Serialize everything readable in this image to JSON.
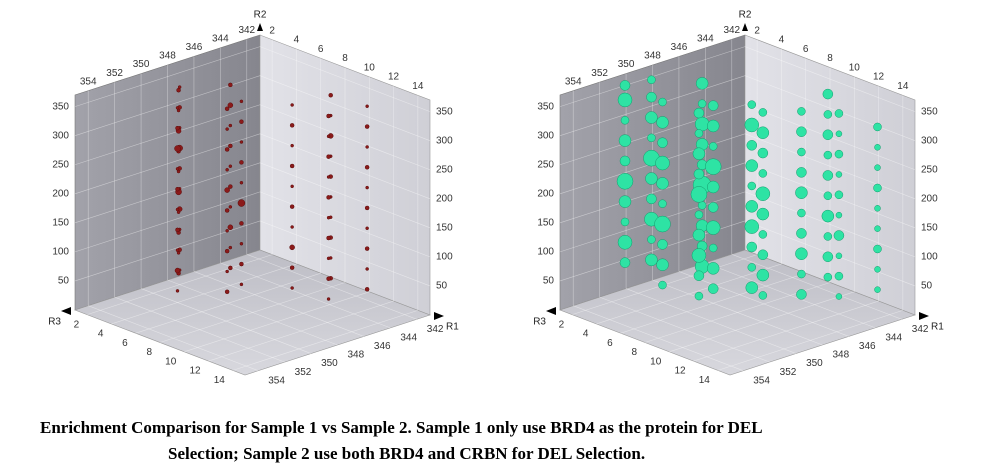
{
  "chart_data": [
    {
      "type": "scatter3d",
      "color": "#8b1a1a",
      "stroke": "#5a0d0d",
      "xlabel": "R1",
      "ylabel": "R2",
      "zlabel": "R3",
      "xlim": [
        341,
        355
      ],
      "xticks": [
        342,
        344,
        346,
        348,
        350,
        352,
        354
      ],
      "zlim": [
        1,
        15
      ],
      "zticks": [
        2,
        4,
        6,
        8,
        10,
        12,
        14
      ],
      "ylim": [
        0,
        370
      ],
      "yticks": [
        50,
        100,
        150,
        200,
        250,
        300,
        350
      ],
      "grid": true,
      "columns": [
        {
          "r1": 348,
          "r3": 2,
          "r2": [
            25,
            60,
            95,
            130,
            165,
            200,
            235,
            270,
            305,
            340
          ],
          "size": [
            1.5,
            2,
            1.5,
            2.5,
            1.5,
            2,
            3,
            1.5,
            2,
            1.5
          ]
        },
        {
          "r1": 349,
          "r3": 3,
          "r2": [
            35,
            70,
            105,
            140,
            175,
            210,
            245,
            280,
            315,
            350
          ],
          "size": [
            2,
            1.5,
            2,
            1.5,
            3,
            1.5,
            2,
            2.5,
            1.5,
            2
          ]
        },
        {
          "r1": 350,
          "r3": 4,
          "r2": [
            20,
            55,
            90,
            125,
            160,
            195,
            230,
            265,
            300,
            335
          ],
          "size": [
            1.5,
            2.5,
            1.5,
            2,
            1.5,
            2,
            1.5,
            3,
            2,
            1.5
          ]
        },
        {
          "r1": 346,
          "r3": 4,
          "r2": [
            30,
            65,
            100,
            135,
            170,
            205,
            240,
            275,
            310,
            345
          ],
          "size": [
            2,
            1.5,
            2.5,
            1.5,
            2,
            1.5,
            2,
            1.5,
            2.5,
            2
          ]
        },
        {
          "r1": 347,
          "r3": 6,
          "r2": [
            25,
            60,
            95,
            130,
            165,
            200,
            235,
            270,
            305,
            340
          ],
          "size": [
            1.5,
            2,
            1.5,
            2,
            3.5,
            1.5,
            2,
            1.5,
            2,
            1.5
          ]
        },
        {
          "r1": 349,
          "r3": 7,
          "r2": [
            35,
            70,
            105,
            140,
            175,
            210,
            245,
            280,
            315,
            350
          ],
          "size": [
            2,
            1.5,
            2,
            1.5,
            2,
            2.5,
            1.5,
            2,
            1.5,
            2
          ]
        },
        {
          "r1": 345,
          "r3": 8,
          "r2": [
            20,
            55,
            90,
            125,
            160,
            195,
            230,
            265,
            300,
            335
          ],
          "size": [
            1.5,
            2,
            2.5,
            1.5,
            2,
            1.5,
            2,
            1.5,
            2,
            1.5
          ]
        },
        {
          "r1": 343,
          "r3": 9,
          "r2": [
            30,
            65,
            100,
            135,
            170,
            205,
            240,
            275,
            310,
            345
          ],
          "size": [
            2,
            1.5,
            2,
            1.5,
            1.5,
            2,
            1.5,
            2.5,
            1.5,
            2
          ]
        },
        {
          "r1": 345,
          "r3": 11,
          "r2": [
            25,
            60,
            95,
            130,
            165,
            200,
            235,
            270,
            305,
            340
          ],
          "size": [
            1.5,
            2,
            1.5,
            2,
            1.5,
            2,
            1.5,
            2,
            1.5,
            2
          ]
        },
        {
          "r1": 343,
          "r3": 12,
          "r2": [
            35,
            70,
            105,
            140,
            175,
            210,
            245,
            280,
            315,
            350
          ],
          "size": [
            2,
            1.5,
            2,
            1.5,
            2,
            1.5,
            2,
            1.5,
            2,
            1.5
          ]
        }
      ]
    },
    {
      "type": "scatter3d",
      "color": "#2ee3a4",
      "stroke": "#159a6c",
      "xlabel": "R1",
      "ylabel": "R2",
      "zlabel": "R3",
      "xlim": [
        341,
        355
      ],
      "xticks": [
        342,
        344,
        346,
        348,
        350,
        352,
        354
      ],
      "zlim": [
        1,
        15
      ],
      "zticks": [
        2,
        4,
        6,
        8,
        10,
        12,
        14
      ],
      "ylim": [
        0,
        370
      ],
      "yticks": [
        50,
        100,
        150,
        200,
        250,
        300,
        350
      ],
      "grid": true,
      "columns": [
        {
          "r1": 351,
          "r3": 2,
          "r2": [
            60,
            95,
            130,
            165,
            200,
            235,
            270,
            305,
            340,
            365
          ],
          "size": [
            5,
            7,
            4,
            6,
            8,
            5,
            6,
            4,
            7,
            5
          ]
        },
        {
          "r1": 349,
          "r3": 2,
          "r2": [
            50,
            85,
            120,
            155,
            190,
            225,
            260,
            295,
            330,
            360
          ],
          "size": [
            6,
            4,
            7,
            5,
            6,
            8,
            4,
            6,
            5,
            4
          ]
        },
        {
          "r1": 350,
          "r3": 4,
          "r2": [
            30,
            65,
            100,
            135,
            170,
            205,
            240,
            275,
            310,
            345
          ],
          "size": [
            4,
            6,
            5,
            8,
            4,
            6,
            7,
            5,
            6,
            4
          ]
        },
        {
          "r1": 347,
          "r3": 4,
          "r2": [
            40,
            75,
            110,
            145,
            180,
            215,
            250,
            285,
            320,
            355
          ],
          "size": [
            7,
            5,
            6,
            4,
            9,
            5,
            6,
            7,
            4,
            6
          ]
        },
        {
          "r1": 348,
          "r3": 6,
          "r2": [
            25,
            60,
            95,
            130,
            165,
            200,
            235,
            270,
            305,
            340
          ],
          "size": [
            5,
            6,
            4,
            7,
            5,
            6,
            8,
            4,
            6,
            5
          ]
        },
        {
          "r1": 350,
          "r3": 7,
          "r2": [
            35,
            70,
            105,
            140,
            175,
            210,
            245,
            280,
            315,
            350
          ],
          "size": [
            4,
            5,
            7,
            6,
            4,
            8,
            5,
            6,
            4,
            5
          ]
        },
        {
          "r1": 346,
          "r3": 7,
          "r2": [
            20,
            55,
            90,
            125,
            160,
            195,
            230,
            265,
            300,
            335
          ],
          "size": [
            6,
            4,
            5,
            7,
            6,
            4,
            6,
            5,
            7,
            4
          ]
        },
        {
          "r1": 347,
          "r3": 9,
          "r2": [
            30,
            65,
            100,
            135,
            170,
            205,
            240,
            275,
            310,
            345
          ],
          "size": [
            4,
            6,
            5,
            4,
            6,
            7,
            4,
            5,
            6,
            4
          ]
        },
        {
          "r1": 345,
          "r3": 10,
          "r2": [
            25,
            60,
            95,
            130,
            165,
            200,
            235,
            270,
            305,
            340
          ],
          "size": [
            5,
            4,
            6,
            5,
            4,
            6,
            5,
            4,
            5,
            4
          ]
        },
        {
          "r1": 343,
          "r3": 10,
          "r2": [
            40,
            75,
            110,
            145,
            180,
            215,
            250,
            285,
            320,
            355
          ],
          "size": [
            4,
            5,
            4,
            6,
            4,
            5,
            4,
            5,
            4,
            5
          ]
        },
        {
          "r1": 344,
          "r3": 12,
          "r2": [
            30,
            65,
            100,
            135,
            170,
            205,
            240,
            275,
            310,
            345
          ],
          "size": [
            3,
            4,
            3,
            5,
            3,
            4,
            3,
            4,
            3,
            4
          ]
        },
        {
          "r1": 342,
          "r3": 13,
          "r2": [
            35,
            70,
            105,
            140,
            175,
            210,
            245,
            280,
            315
          ],
          "size": [
            3,
            3,
            4,
            3,
            3,
            4,
            3,
            3,
            4
          ]
        }
      ]
    }
  ],
  "caption": [
    "Enrichment Comparison for Sample 1 vs Sample 2. Sample 1 only use BRD4 as the protein for DEL",
    "Selection; Sample 2 use both BRD4 and CRBN for DEL Selection."
  ]
}
